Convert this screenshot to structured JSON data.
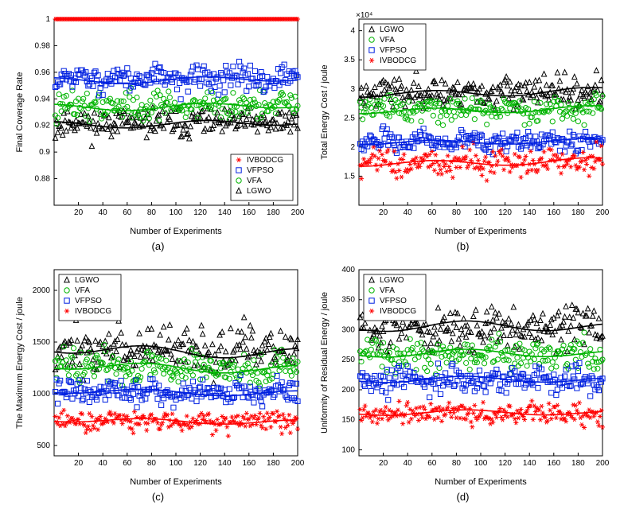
{
  "global": {
    "bg": "#ffffff",
    "axis_color": "#000000",
    "box_color": "#000000",
    "xlabel": "Number of Experiments",
    "xlabel_fontsize": 11,
    "ylabel_fontsize": 11,
    "tick_fontsize": 10,
    "legend_fontsize": 10,
    "xlim": [
      0,
      200
    ],
    "xticks": [
      20,
      40,
      60,
      80,
      100,
      120,
      140,
      160,
      180,
      200
    ],
    "marker_size": 4,
    "trend_width": 1.6,
    "series_order": [
      "LGWO",
      "VFA",
      "VFPSO",
      "IVBODCG"
    ],
    "colors": {
      "LGWO": "#000000",
      "VFA": "#00b400",
      "VFPSO": "#0020e0",
      "IVBODCG": "#ff0000"
    },
    "markers": {
      "LGWO": "triangle",
      "VFA": "circle",
      "VFPSO": "square",
      "IVBODCG": "star"
    }
  },
  "panels": {
    "a": {
      "sublabel": "(a)",
      "ylabel": "Final Coverage Rate",
      "ylim": [
        0.86,
        1.0
      ],
      "yticks": [
        0.88,
        0.9,
        0.92,
        0.94,
        0.96,
        0.98,
        1.0
      ],
      "ytick_fmt": "fixed2stripTrailingIfInt",
      "legend_order": [
        "IVBODCG",
        "VFPSO",
        "VFA",
        "LGWO"
      ],
      "legend_pos": "br",
      "y_exponent": null,
      "bands": {
        "IVBODCG": {
          "mean": 1.0,
          "spread": 0.0,
          "flat": true
        },
        "VFPSO": {
          "mean": 0.955,
          "spread": 0.012
        },
        "VFA": {
          "mean": 0.935,
          "spread": 0.013
        },
        "LGWO": {
          "mean": 0.922,
          "spread": 0.013
        }
      }
    },
    "b": {
      "sublabel": "(b)",
      "ylabel": "Total Energy Cost / joule",
      "ylim": [
        10000,
        42000
      ],
      "yticks": [
        15000,
        20000,
        25000,
        30000,
        35000,
        40000
      ],
      "ytick_fmt": "sciShort",
      "legend_order": [
        "LGWO",
        "VFA",
        "VFPSO",
        "IVBODCG"
      ],
      "legend_pos": "tl",
      "y_exponent": "×10⁴",
      "bands": {
        "LGWO": {
          "mean": 29500,
          "spread": 3200
        },
        "VFA": {
          "mean": 26500,
          "spread": 2600
        },
        "VFPSO": {
          "mean": 21000,
          "spread": 2200
        },
        "IVBODCG": {
          "mean": 17500,
          "spread": 2800
        }
      }
    },
    "c": {
      "sublabel": "(c)",
      "ylabel": "The Maximum Energy Cost / joule",
      "ylim": [
        400,
        2200
      ],
      "yticks": [
        500,
        1000,
        1500,
        2000
      ],
      "ytick_fmt": "int",
      "legend_order": [
        "LGWO",
        "VFA",
        "VFPSO",
        "IVBODCG"
      ],
      "legend_pos": "tl",
      "y_exponent": null,
      "bands": {
        "LGWO": {
          "mean": 1420,
          "spread": 260
        },
        "VFA": {
          "mean": 1260,
          "spread": 210
        },
        "VFPSO": {
          "mean": 1020,
          "spread": 140
        },
        "IVBODCG": {
          "mean": 740,
          "spread": 120
        }
      }
    },
    "d": {
      "sublabel": "(d)",
      "ylabel": "Uniformity of Residual Energy / joule",
      "ylim": [
        90,
        400
      ],
      "yticks": [
        100,
        150,
        200,
        250,
        300,
        350,
        400
      ],
      "ytick_fmt": "int",
      "legend_order": [
        "LGWO",
        "VFA",
        "VFPSO",
        "IVBODCG"
      ],
      "legend_pos": "tl",
      "y_exponent": null,
      "bands": {
        "LGWO": {
          "mean": 302,
          "spread": 42
        },
        "VFA": {
          "mean": 258,
          "spread": 32
        },
        "VFPSO": {
          "mean": 215,
          "spread": 25
        },
        "IVBODCG": {
          "mean": 160,
          "spread": 22
        }
      }
    }
  }
}
